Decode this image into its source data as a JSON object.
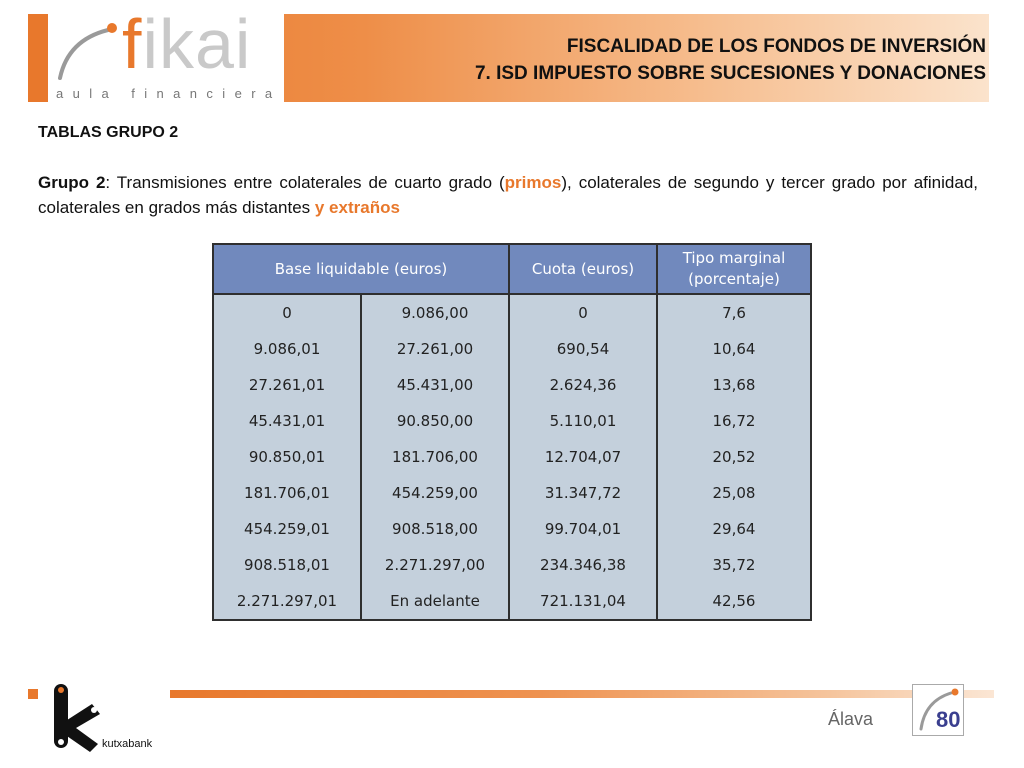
{
  "header": {
    "logo_word_accent": "f",
    "logo_word_rest": "ikai",
    "logo_subtitle": "aula financiera",
    "title_line1": "FISCALIDAD DE LOS FONDOS DE INVERSIÓN",
    "title_line2": "7.  ISD IMPUESTO SOBRE SUCESIONES Y DONACIONES"
  },
  "section": {
    "title": "TABLAS GRUPO 2",
    "para_label": "Grupo 2",
    "para_part1": ": Transmisiones entre colaterales de cuarto grado (",
    "para_highlight1": "primos",
    "para_part2": "), colaterales de segundo y tercer grado por afinidad, colaterales en grados más distantes ",
    "para_highlight2": "y extraños"
  },
  "table": {
    "headers": [
      "Base liquidable (euros)",
      "Cuota (euros)",
      "Tipo marginal (porcentaje)"
    ],
    "rows": [
      [
        "0",
        "9.086,00",
        "0",
        "7,6"
      ],
      [
        "9.086,01",
        "27.261,00",
        "690,54",
        "10,64"
      ],
      [
        "27.261,01",
        "45.431,00",
        "2.624,36",
        "13,68"
      ],
      [
        "45.431,01",
        "90.850,00",
        "5.110,01",
        "16,72"
      ],
      [
        "90.850,01",
        "181.706,00",
        "12.704,07",
        "20,52"
      ],
      [
        "181.706,01",
        "454.259,00",
        "31.347,72",
        "25,08"
      ],
      [
        "454.259,01",
        "908.518,00",
        "99.704,01",
        "29,64"
      ],
      [
        "908.518,01",
        "2.271.297,00",
        "234.346,38",
        "35,72"
      ],
      [
        "2.271.297,01",
        "En adelante",
        "721.131,04",
        "42,56"
      ]
    ]
  },
  "footer": {
    "brand": "kutxabank",
    "region": "Álava",
    "page_number": "80"
  },
  "colors": {
    "accent": "#e8782c",
    "table_header": "#7189bd",
    "table_cell": "#c4d0dc",
    "page_number": "#3a3f8f"
  }
}
